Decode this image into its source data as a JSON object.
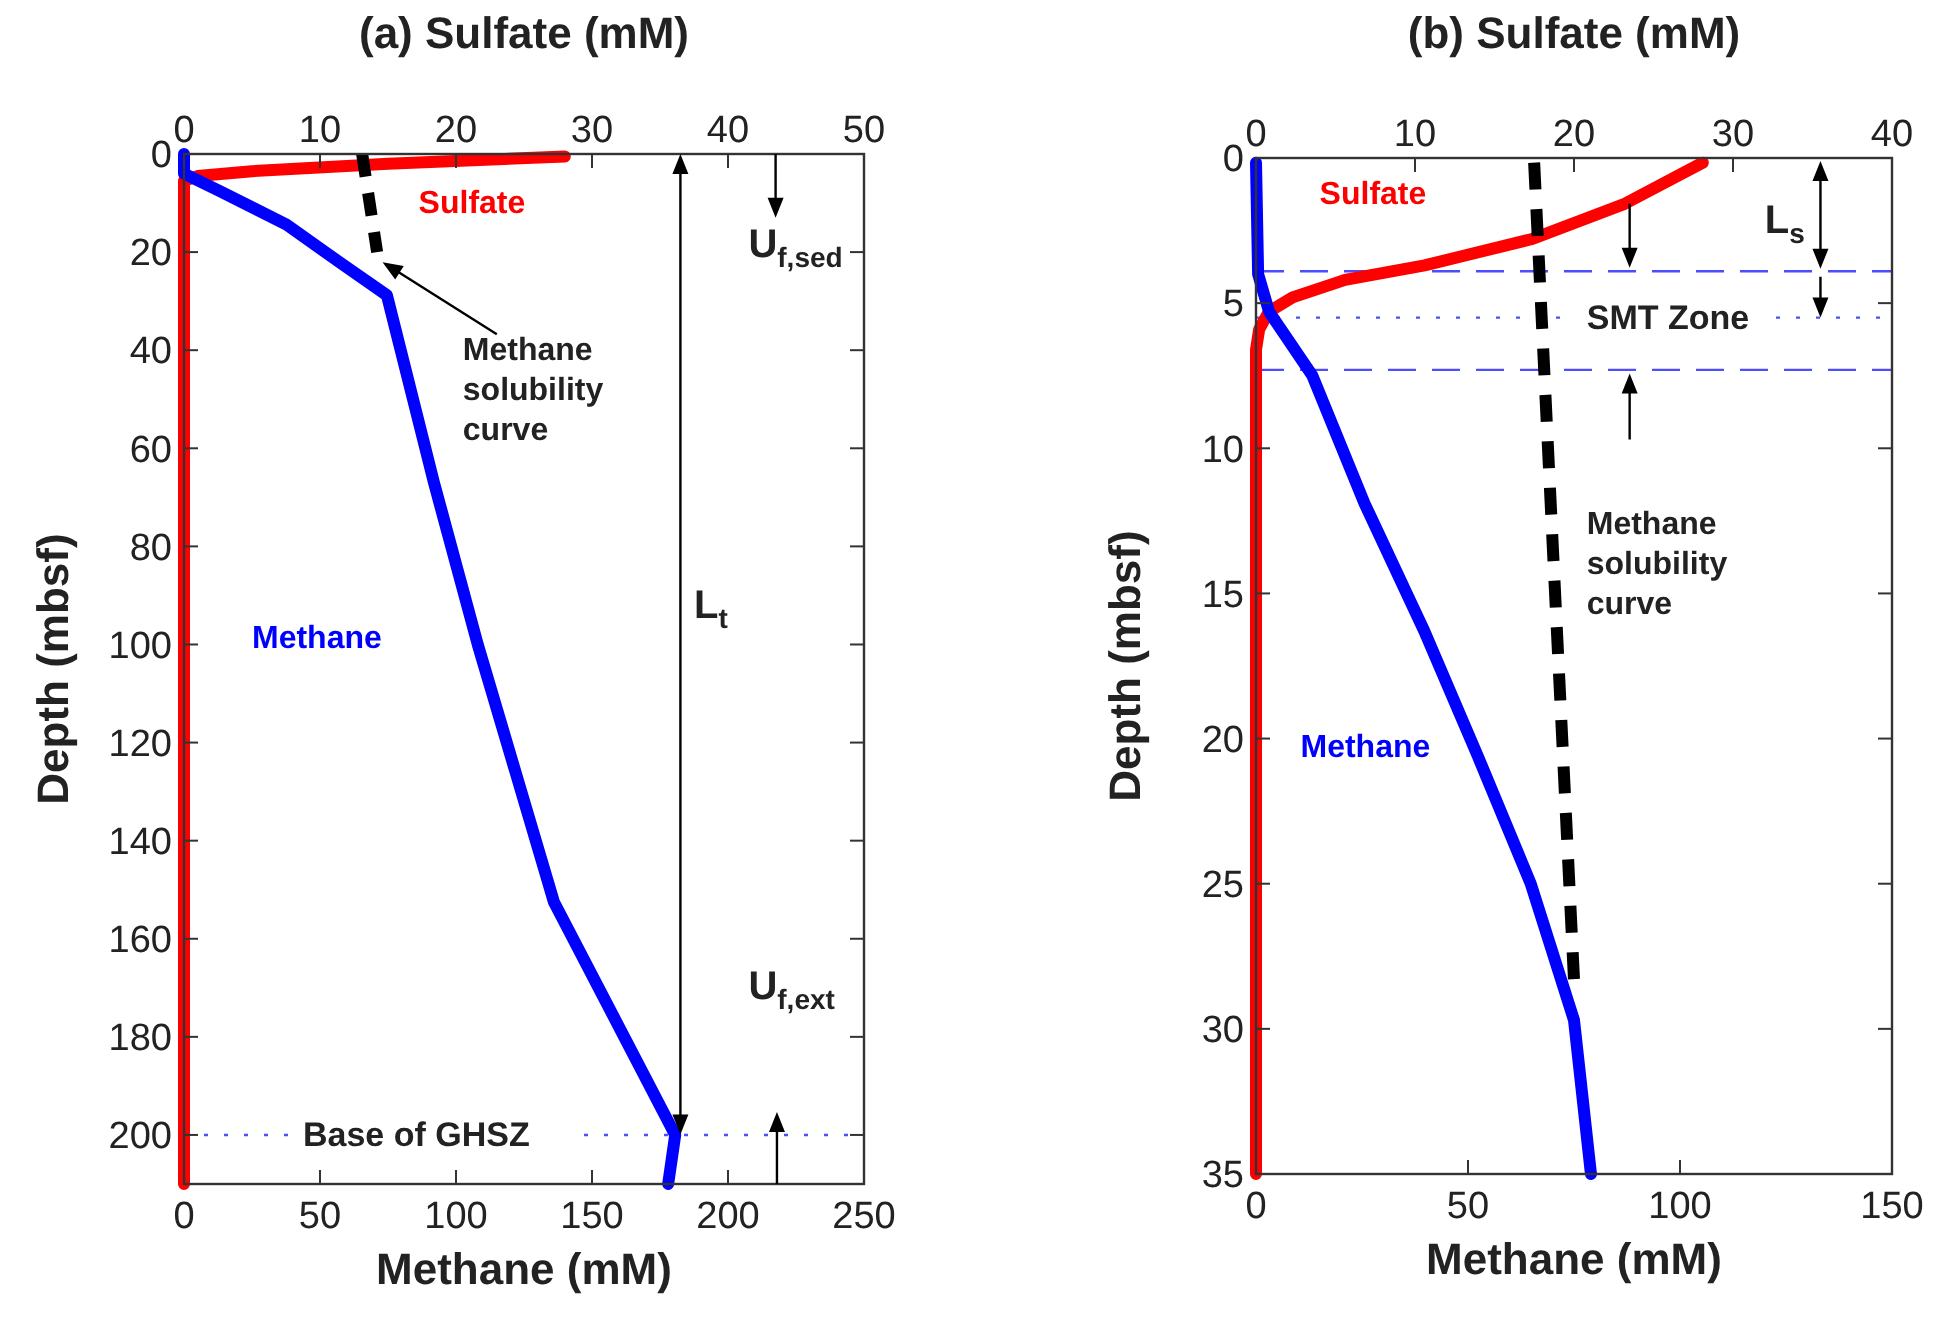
{
  "chart_data": [
    {
      "type": "line",
      "x2label": "(a) Sulfate (mM)",
      "xlabel": "Methane (mM)",
      "ylabel": "Depth (mbsf)",
      "xlim": [
        0,
        250
      ],
      "xticks": [
        0,
        50,
        100,
        150,
        200,
        250
      ],
      "x2lim": [
        0,
        50
      ],
      "x2ticks": [
        0,
        10,
        20,
        30,
        40,
        50
      ],
      "ylim": [
        210,
        0
      ],
      "yticks": [
        0,
        20,
        40,
        60,
        80,
        100,
        120,
        140,
        160,
        180,
        200
      ],
      "grid": false,
      "series": [
        {
          "name": "Sulfate",
          "color": "#ff0000",
          "axis": "x2",
          "x": [
            28,
            15,
            5,
            1,
            0,
            0
          ],
          "values": [
            0.5,
            2,
            3.5,
            4.5,
            5.5,
            210
          ]
        },
        {
          "name": "Methane",
          "color": "#0000ff",
          "x": [
            0,
            0,
            13,
            37.7,
            57,
            74.6,
            91.9,
            108,
            136,
            180.6,
            178
          ],
          "values": [
            0,
            4,
            7.5,
            14.4,
            22,
            28.8,
            67,
            100,
            152.5,
            200,
            210
          ]
        },
        {
          "name": "Methane solubility curve",
          "color": "#000000",
          "line_style": "dashed",
          "x": [
            65.5,
            71
          ],
          "values": [
            0,
            20
          ]
        }
      ],
      "ref_lines": [
        {
          "axis": "y",
          "value": 200,
          "label": "Base of GHSZ",
          "color": "#4d4dff",
          "line_style": "dotted"
        }
      ],
      "annotations": [
        "L$_{t}$",
        "U$_{f,sed}$",
        "U$_{f,ext}$"
      ]
    },
    {
      "type": "line",
      "x2label": "(b) Sulfate (mM)",
      "xlabel": "Methane (mM)",
      "ylabel": "Depth (mbsf)",
      "xlim": [
        0,
        150
      ],
      "xticks": [
        0,
        50,
        100,
        150
      ],
      "x2lim": [
        0,
        40
      ],
      "x2ticks": [
        0,
        10,
        20,
        30,
        40
      ],
      "ylim": [
        35,
        0
      ],
      "yticks": [
        0,
        5,
        10,
        15,
        20,
        25,
        30,
        35
      ],
      "grid": false,
      "series": [
        {
          "name": "Sulfate",
          "color": "#ff0000",
          "axis": "x2",
          "x": [
            28.1,
            23.1,
            17.3,
            10.6,
            5.6,
            2.3,
            0.8,
            0.2,
            0,
            0
          ],
          "values": [
            0.16,
            1.6,
            2.8,
            3.7,
            4.2,
            4.8,
            5.3,
            5.9,
            6.6,
            35
          ]
        },
        {
          "name": "Methane",
          "color": "#0000ff",
          "x": [
            0,
            0.5,
            3.1,
            13.3,
            25.6,
            39.7,
            52.3,
            64.8,
            75,
            79
          ],
          "values": [
            0.16,
            4,
            5.3,
            7.5,
            11.9,
            16.3,
            20.6,
            25,
            29.7,
            35
          ]
        },
        {
          "name": "Methane solubility curve",
          "color": "#000000",
          "line_style": "dashed",
          "x": [
            65.6,
            69.5,
            75
          ],
          "values": [
            0.16,
            11.9,
            28.3
          ]
        }
      ],
      "ref_lines": [
        {
          "axis": "y",
          "value": 3.9,
          "color": "#4d4dff",
          "line_style": "dashed"
        },
        {
          "axis": "y",
          "value": 5.5,
          "label": "SMT Zone",
          "color": "#4d4dff",
          "line_style": "dotted"
        },
        {
          "axis": "y",
          "value": 7.3,
          "color": "#4d4dff",
          "line_style": "dashed"
        }
      ],
      "annotations": [
        "L$_{s}$"
      ]
    }
  ]
}
